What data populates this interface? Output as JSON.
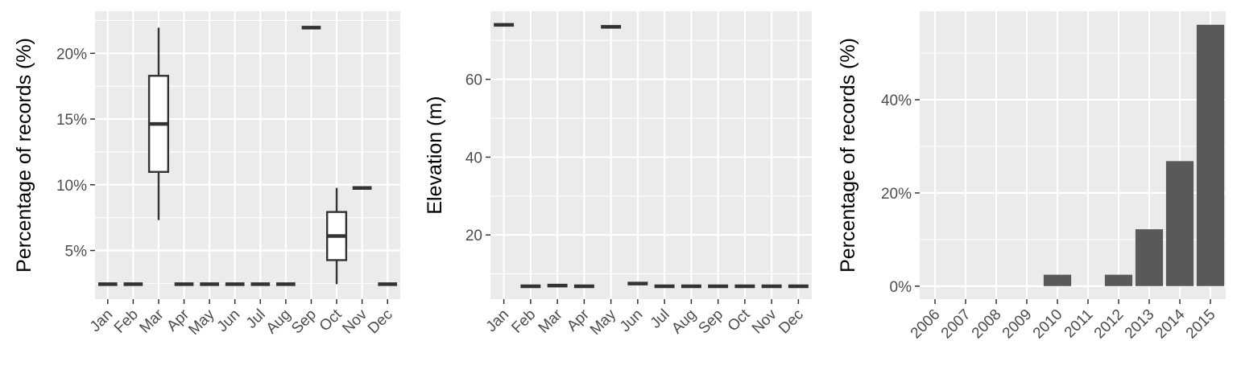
{
  "chart_data": [
    {
      "type": "box",
      "ylabel": "Percentage of records (%)",
      "categories": [
        "Jan",
        "Feb",
        "Mar",
        "Apr",
        "May",
        "Jun",
        "Jul",
        "Aug",
        "Sep",
        "Oct",
        "Nov",
        "Dec"
      ],
      "ylim": [
        1.3,
        23.2
      ],
      "yticks": [
        5,
        10,
        15,
        20
      ],
      "ytick_labels": [
        "5%",
        "10%",
        "15%",
        "20%"
      ],
      "grid": true,
      "boxes": [
        {
          "category": "Jan",
          "min": 2.44,
          "q1": 2.44,
          "median": 2.44,
          "q3": 2.44,
          "max": 2.44
        },
        {
          "category": "Feb",
          "min": 2.44,
          "q1": 2.44,
          "median": 2.44,
          "q3": 2.44,
          "max": 2.44
        },
        {
          "category": "Mar",
          "min": 7.32,
          "q1": 10.98,
          "median": 14.63,
          "q3": 18.29,
          "max": 21.95
        },
        {
          "category": "Apr",
          "min": 2.44,
          "q1": 2.44,
          "median": 2.44,
          "q3": 2.44,
          "max": 2.44
        },
        {
          "category": "May",
          "min": 2.44,
          "q1": 2.44,
          "median": 2.44,
          "q3": 2.44,
          "max": 2.44
        },
        {
          "category": "Jun",
          "min": 2.44,
          "q1": 2.44,
          "median": 2.44,
          "q3": 2.44,
          "max": 2.44
        },
        {
          "category": "Jul",
          "min": 2.44,
          "q1": 2.44,
          "median": 2.44,
          "q3": 2.44,
          "max": 2.44
        },
        {
          "category": "Aug",
          "min": 2.44,
          "q1": 2.44,
          "median": 2.44,
          "q3": 2.44,
          "max": 2.44
        },
        {
          "category": "Sep",
          "min": 21.95,
          "q1": 21.95,
          "median": 21.95,
          "q3": 21.95,
          "max": 21.95
        },
        {
          "category": "Oct",
          "min": 2.44,
          "q1": 4.27,
          "median": 6.1,
          "q3": 7.93,
          "max": 9.76
        },
        {
          "category": "Nov",
          "min": 9.76,
          "q1": 9.76,
          "median": 9.76,
          "q3": 9.76,
          "max": 9.76
        },
        {
          "category": "Dec",
          "min": 2.44,
          "q1": 2.44,
          "median": 2.44,
          "q3": 2.44,
          "max": 2.44
        }
      ]
    },
    {
      "type": "box",
      "ylabel": "Elevation (m)",
      "categories": [
        "Jan",
        "Feb",
        "Mar",
        "Apr",
        "May",
        "Jun",
        "Jul",
        "Aug",
        "Sep",
        "Oct",
        "Nov",
        "Dec"
      ],
      "ylim": [
        3.5,
        77.5
      ],
      "yticks": [
        20,
        40,
        60
      ],
      "ytick_labels": [
        "20",
        "40",
        "60"
      ],
      "grid": true,
      "boxes": [
        {
          "category": "Jan",
          "min": 74,
          "q1": 74,
          "median": 74,
          "q3": 74,
          "max": 74
        },
        {
          "category": "Feb",
          "min": 6.8,
          "q1": 6.8,
          "median": 6.8,
          "q3": 6.8,
          "max": 6.8
        },
        {
          "category": "Mar",
          "min": 7,
          "q1": 7,
          "median": 7,
          "q3": 7,
          "max": 7
        },
        {
          "category": "Apr",
          "min": 6.8,
          "q1": 6.8,
          "median": 6.8,
          "q3": 6.8,
          "max": 6.8
        },
        {
          "category": "May",
          "min": 73.5,
          "q1": 73.5,
          "median": 73.5,
          "q3": 73.5,
          "max": 73.5
        },
        {
          "category": "Jun",
          "min": 7.5,
          "q1": 7.5,
          "median": 7.5,
          "q3": 7.5,
          "max": 7.5
        },
        {
          "category": "Jul",
          "min": 6.8,
          "q1": 6.8,
          "median": 6.8,
          "q3": 6.8,
          "max": 6.8
        },
        {
          "category": "Aug",
          "min": 6.8,
          "q1": 6.8,
          "median": 6.8,
          "q3": 6.8,
          "max": 6.8
        },
        {
          "category": "Sep",
          "min": 6.8,
          "q1": 6.8,
          "median": 6.8,
          "q3": 6.8,
          "max": 6.8
        },
        {
          "category": "Oct",
          "min": 6.8,
          "q1": 6.8,
          "median": 6.8,
          "q3": 6.8,
          "max": 6.8
        },
        {
          "category": "Nov",
          "min": 6.8,
          "q1": 6.8,
          "median": 6.8,
          "q3": 6.8,
          "max": 6.8
        },
        {
          "category": "Dec",
          "min": 6.8,
          "q1": 6.8,
          "median": 6.8,
          "q3": 6.8,
          "max": 6.8
        }
      ]
    },
    {
      "type": "bar",
      "ylabel": "Percentage of records (%)",
      "categories": [
        "2006",
        "2007",
        "2008",
        "2009",
        "2010",
        "2011",
        "2012",
        "2013",
        "2014",
        "2015"
      ],
      "values": [
        0,
        0,
        0,
        0,
        2.44,
        0,
        2.44,
        12.2,
        26.83,
        56.1
      ],
      "ylim": [
        -2.8,
        59.0
      ],
      "yticks": [
        0,
        20,
        40
      ],
      "ytick_labels": [
        "0%",
        "20%",
        "40%"
      ],
      "grid": true
    }
  ]
}
